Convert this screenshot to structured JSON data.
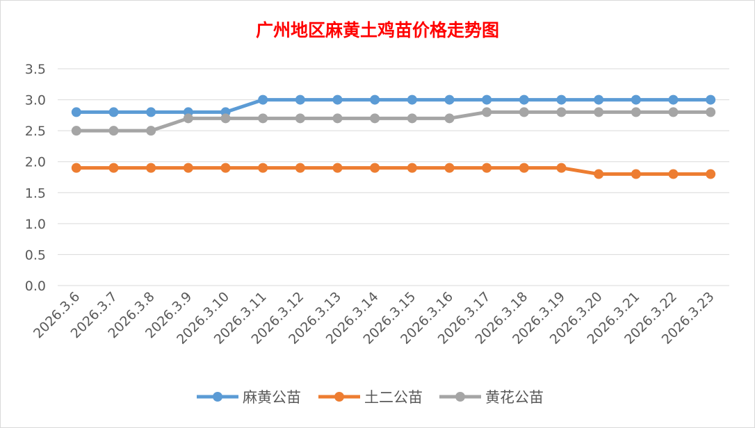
{
  "colors": {
    "title": "#ff0000",
    "gridline": "#d9d9d9",
    "axis_text": "#595959"
  },
  "chart_data": {
    "type": "line",
    "title": "广州地区麻黄土鸡苗价格走势图",
    "xlabel": "",
    "ylabel": "",
    "ylim": [
      0,
      3.5
    ],
    "yticks": [
      "0.0",
      "0.5",
      "1.0",
      "1.5",
      "2.0",
      "2.5",
      "3.0",
      "3.5"
    ],
    "grid": true,
    "legend_position": "bottom",
    "categories": [
      "2026.3.6",
      "2026.3.7",
      "2026.3.8",
      "2026.3.9",
      "2026.3.10",
      "2026.3.11",
      "2026.3.12",
      "2026.3.13",
      "2026.3.14",
      "2026.3.15",
      "2026.3.16",
      "2026.3.17",
      "2026.3.18",
      "2026.3.19",
      "2026.3.20",
      "2026.3.21",
      "2026.3.22",
      "2026.3.23"
    ],
    "series": [
      {
        "name": "麻黄公苗",
        "color": "#5b9bd5",
        "values": [
          2.8,
          2.8,
          2.8,
          2.8,
          2.8,
          3.0,
          3.0,
          3.0,
          3.0,
          3.0,
          3.0,
          3.0,
          3.0,
          3.0,
          3.0,
          3.0,
          3.0,
          3.0
        ]
      },
      {
        "name": "土二公苗",
        "color": "#ed7d31",
        "values": [
          1.9,
          1.9,
          1.9,
          1.9,
          1.9,
          1.9,
          1.9,
          1.9,
          1.9,
          1.9,
          1.9,
          1.9,
          1.9,
          1.9,
          1.8,
          1.8,
          1.8,
          1.8
        ]
      },
      {
        "name": "黄花公苗",
        "color": "#a5a5a5",
        "values": [
          2.5,
          2.5,
          2.5,
          2.7,
          2.7,
          2.7,
          2.7,
          2.7,
          2.7,
          2.7,
          2.7,
          2.8,
          2.8,
          2.8,
          2.8,
          2.8,
          2.8,
          2.8
        ]
      }
    ]
  }
}
